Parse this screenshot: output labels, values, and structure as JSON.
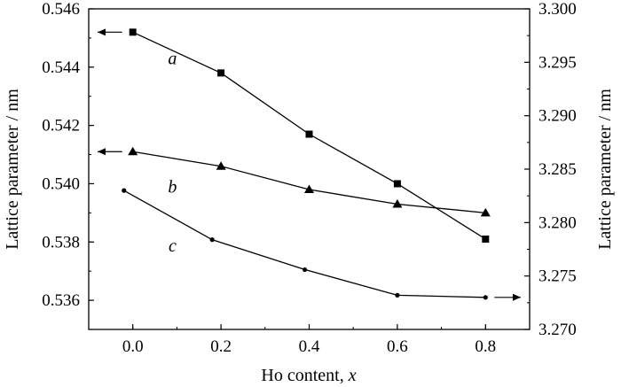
{
  "chart_data": {
    "type": "line",
    "xlabel_prefix": "Ho content, ",
    "xlabel_var": "x",
    "ylabel_left": "Lattice parameter / nm",
    "ylabel_right": "Lattice parameter / nm",
    "xlim": [
      -0.1,
      0.9
    ],
    "ylim_left": [
      0.535,
      0.546
    ],
    "ylim_right": [
      3.27,
      3.3
    ],
    "x_ticks": [
      "0.0",
      "0.2",
      "0.4",
      "0.6",
      "0.8"
    ],
    "y_left_ticks": [
      "0.536",
      "0.538",
      "0.540",
      "0.542",
      "0.544",
      "0.546"
    ],
    "y_right_ticks": [
      "3.270",
      "3.275",
      "3.280",
      "3.285",
      "3.290",
      "3.295",
      "3.300"
    ],
    "series": [
      {
        "label": "a",
        "axis": "left",
        "marker": "square",
        "x": [
          0.0,
          0.2,
          0.4,
          0.6,
          0.8
        ],
        "y": [
          0.5452,
          0.5438,
          0.5417,
          0.54,
          0.5381
        ]
      },
      {
        "label": "b",
        "axis": "left",
        "marker": "triangle",
        "x": [
          0.0,
          0.2,
          0.4,
          0.6,
          0.8
        ],
        "y": [
          0.5411,
          0.5406,
          0.5398,
          0.5393,
          0.539
        ]
      },
      {
        "label": "c",
        "axis": "right",
        "marker": "circle",
        "x": [
          -0.02,
          0.18,
          0.39,
          0.6,
          0.8
        ],
        "y": [
          3.283,
          3.2784,
          3.2756,
          3.2732,
          3.273
        ]
      }
    ],
    "grid": false
  }
}
